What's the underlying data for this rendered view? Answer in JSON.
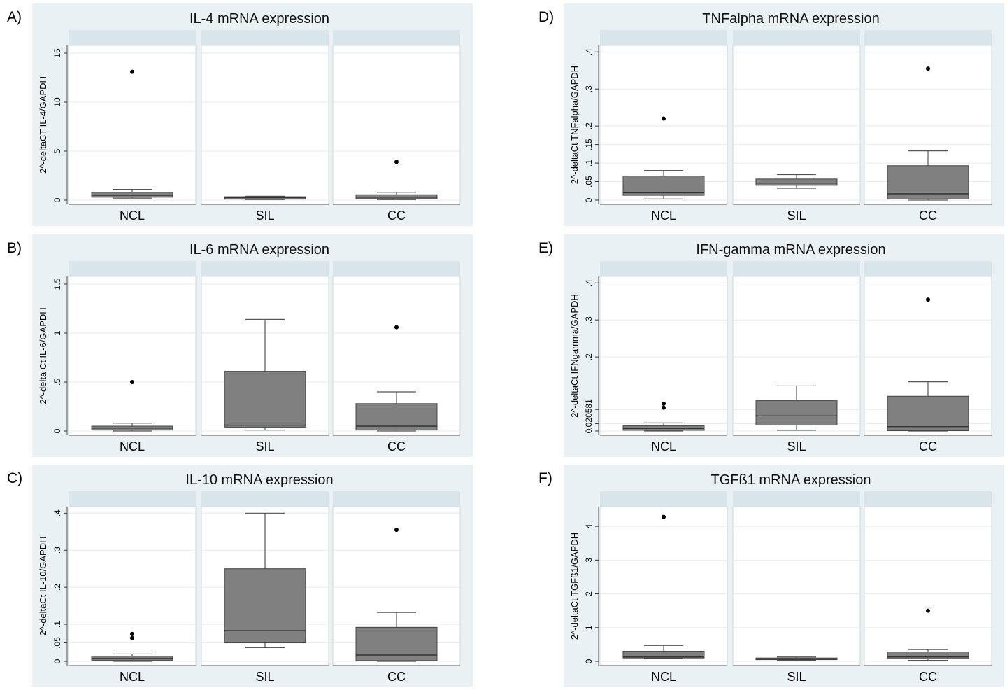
{
  "chart_data": [
    {
      "type": "box",
      "panel_label": "A)",
      "title": "IL-4 mRNA expression",
      "ylabel": "2^-deltaCT IL-4/GAPDH",
      "ylim": [
        0,
        15.5
      ],
      "yticks": [
        0,
        5,
        10,
        15
      ],
      "yticklabels": [
        "0",
        "5",
        "10",
        "15"
      ],
      "categories": [
        "NCL",
        "SIL",
        "CC"
      ],
      "boxes": [
        {
          "group": "NCL",
          "whisker_low": 0.2,
          "q1": 0.3,
          "median": 0.5,
          "q3": 0.8,
          "whisker_high": 1.1,
          "outliers": [
            13.1
          ]
        },
        {
          "group": "SIL",
          "whisker_low": 0.05,
          "q1": 0.1,
          "median": 0.25,
          "q3": 0.35,
          "whisker_high": 0.4,
          "outliers": []
        },
        {
          "group": "CC",
          "whisker_low": 0.05,
          "q1": 0.15,
          "median": 0.3,
          "q3": 0.55,
          "whisker_high": 0.8,
          "outliers": [
            3.9
          ]
        }
      ]
    },
    {
      "type": "box",
      "panel_label": "B)",
      "title": "IL-6 mRNA expression",
      "ylabel": "2^-delta Ct IL-6/GAPDH",
      "ylim": [
        0,
        1.55
      ],
      "yticks": [
        0,
        0.5,
        1,
        1.5
      ],
      "yticklabels": [
        "0",
        ".5",
        "1",
        "1.5"
      ],
      "categories": [
        "NCL",
        "SIL",
        "CC"
      ],
      "boxes": [
        {
          "group": "NCL",
          "whisker_low": 0.0,
          "q1": 0.01,
          "median": 0.03,
          "q3": 0.05,
          "whisker_high": 0.08,
          "outliers": [
            0.5
          ]
        },
        {
          "group": "SIL",
          "whisker_low": 0.01,
          "q1": 0.04,
          "median": 0.06,
          "q3": 0.61,
          "whisker_high": 1.14,
          "outliers": []
        },
        {
          "group": "CC",
          "whisker_low": 0.0,
          "q1": 0.01,
          "median": 0.05,
          "q3": 0.28,
          "whisker_high": 0.4,
          "outliers": [
            1.06
          ]
        }
      ]
    },
    {
      "type": "box",
      "panel_label": "C)",
      "title": "IL-10 mRNA expression",
      "ylabel": "2^-deltaCt IL-10/GAPDH",
      "ylim": [
        0,
        0.41
      ],
      "yticks": [
        0,
        0.05,
        0.1,
        0.2,
        0.3,
        0.4
      ],
      "yticklabels": [
        "0",
        ".05",
        ".1",
        ".2",
        ".3",
        ".4"
      ],
      "categories": [
        "NCL",
        "SIL",
        "CC"
      ],
      "boxes": [
        {
          "group": "NCL",
          "whisker_low": 0.0,
          "q1": 0.003,
          "median": 0.008,
          "q3": 0.014,
          "whisker_high": 0.02,
          "outliers": [
            0.063,
            0.074
          ]
        },
        {
          "group": "SIL",
          "whisker_low": 0.037,
          "q1": 0.05,
          "median": 0.083,
          "q3": 0.25,
          "whisker_high": 0.4,
          "outliers": []
        },
        {
          "group": "CC",
          "whisker_low": 0.0,
          "q1": 0.002,
          "median": 0.017,
          "q3": 0.092,
          "whisker_high": 0.132,
          "outliers": [
            0.355
          ]
        }
      ]
    },
    {
      "type": "box",
      "panel_label": "D)",
      "title": "TNFalpha mRNA expression",
      "ylabel": "2^-deltaCt TNFalpha/GAPDH",
      "ylim": [
        0,
        0.41
      ],
      "yticks": [
        0,
        0.05,
        0.1,
        0.15,
        0.2,
        0.3,
        0.4
      ],
      "yticklabels": [
        "0",
        ".05",
        ".1",
        ".15",
        ".2",
        ".3",
        ".4"
      ],
      "categories": [
        "NCL",
        "SIL",
        "CC"
      ],
      "boxes": [
        {
          "group": "NCL",
          "whisker_low": 0.003,
          "q1": 0.013,
          "median": 0.02,
          "q3": 0.065,
          "whisker_high": 0.08,
          "outliers": [
            0.22
          ]
        },
        {
          "group": "SIL",
          "whisker_low": 0.032,
          "q1": 0.04,
          "median": 0.046,
          "q3": 0.057,
          "whisker_high": 0.069,
          "outliers": []
        },
        {
          "group": "CC",
          "whisker_low": 0.0,
          "q1": 0.003,
          "median": 0.017,
          "q3": 0.093,
          "whisker_high": 0.133,
          "outliers": [
            0.355
          ]
        }
      ]
    },
    {
      "type": "box",
      "panel_label": "E)",
      "title": "IFN-gamma  mRNA  expression",
      "ylabel": "2^-deltaCt IFNgamma/GAPDH",
      "ylim": [
        0,
        0.41
      ],
      "yticks": [
        0,
        0.02,
        0.0581,
        0.2,
        0.3,
        0.4
      ],
      "yticklabels": [
        "0",
        ".02",
        ".0581",
        ".2",
        ".3",
        ".4"
      ],
      "categories": [
        "NCL",
        "SIL",
        "CC"
      ],
      "boxes": [
        {
          "group": "NCL",
          "whisker_low": 0.0,
          "q1": 0.002,
          "median": 0.007,
          "q3": 0.014,
          "whisker_high": 0.022,
          "outliers": [
            0.063,
            0.074
          ]
        },
        {
          "group": "SIL",
          "whisker_low": 0.002,
          "q1": 0.016,
          "median": 0.041,
          "q3": 0.082,
          "whisker_high": 0.122,
          "outliers": []
        },
        {
          "group": "CC",
          "whisker_low": 0.0,
          "q1": 0.001,
          "median": 0.012,
          "q3": 0.094,
          "whisker_high": 0.133,
          "outliers": [
            0.355
          ]
        }
      ]
    },
    {
      "type": "box",
      "panel_label": "F)",
      "title": "TGFß1 mRNA expression",
      "ylabel": "2^-deltaCt TGFß1/GAPDH",
      "ylim": [
        0,
        4.5
      ],
      "yticks": [
        0,
        1,
        2,
        3,
        4
      ],
      "yticklabels": [
        "0",
        "1",
        "2",
        "3",
        "4"
      ],
      "categories": [
        "NCL",
        "SIL",
        "CC"
      ],
      "boxes": [
        {
          "group": "NCL",
          "whisker_low": 0.08,
          "q1": 0.1,
          "median": 0.13,
          "q3": 0.3,
          "whisker_high": 0.47,
          "outliers": [
            4.28
          ]
        },
        {
          "group": "SIL",
          "whisker_low": 0.03,
          "q1": 0.05,
          "median": 0.07,
          "q3": 0.1,
          "whisker_high": 0.13,
          "outliers": []
        },
        {
          "group": "CC",
          "whisker_low": 0.03,
          "q1": 0.08,
          "median": 0.13,
          "q3": 0.28,
          "whisker_high": 0.35,
          "outliers": [
            1.5
          ]
        }
      ]
    }
  ],
  "colors": {
    "panel_background": "#e9f1f4",
    "strip_background": "#d8e6ec",
    "plot_background": "#ffffff",
    "box_fill": "#808080",
    "grid": "#e5eef2",
    "ink": "#000000"
  }
}
